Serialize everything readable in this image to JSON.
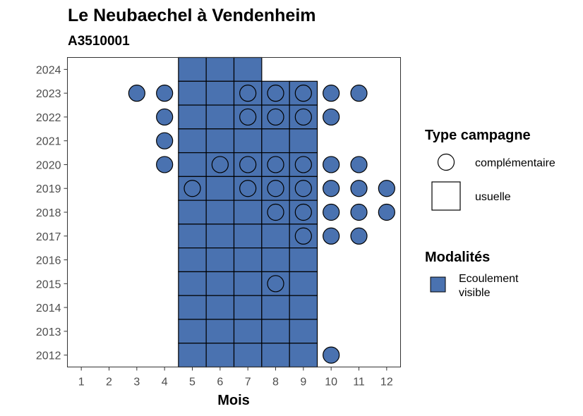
{
  "chart_data": {
    "type": "heatmap",
    "title": "Le Neubaechel à Vendenheim",
    "subtitle": "A3510001",
    "xlabel": "Mois",
    "ylabel": "",
    "x_ticks": [
      "1",
      "2",
      "3",
      "4",
      "5",
      "6",
      "7",
      "8",
      "9",
      "10",
      "11",
      "12"
    ],
    "y_ticks": [
      "2024",
      "2023",
      "2022",
      "2021",
      "2020",
      "2019",
      "2018",
      "2017",
      "2016",
      "2015",
      "2014",
      "2013",
      "2012"
    ],
    "xlim": [
      0.5,
      12.5
    ],
    "ylim": [
      2011.5,
      2024.5
    ],
    "fill_color": "#4a72b0",
    "legend": {
      "shape_title": "Type campagne",
      "shape_items": [
        {
          "shape": "circle",
          "label": "complémentaire"
        },
        {
          "shape": "square",
          "label": "usuelle"
        }
      ],
      "fill_title": "Modalités",
      "fill_items": [
        {
          "label_line1": "Ecoulement",
          "label_line2": "visible",
          "color": "#4a72b0"
        }
      ]
    },
    "usuelle_cells": [
      {
        "year": 2024,
        "months": [
          5,
          6,
          7
        ]
      },
      {
        "year": 2023,
        "months": [
          5,
          6,
          7,
          8,
          9
        ]
      },
      {
        "year": 2022,
        "months": [
          5,
          6,
          7,
          8,
          9
        ]
      },
      {
        "year": 2021,
        "months": [
          5,
          6,
          7,
          8,
          9
        ]
      },
      {
        "year": 2020,
        "months": [
          5,
          6,
          7,
          8,
          9
        ]
      },
      {
        "year": 2019,
        "months": [
          5,
          6,
          7,
          8,
          9
        ]
      },
      {
        "year": 2018,
        "months": [
          5,
          6,
          7,
          8,
          9
        ]
      },
      {
        "year": 2017,
        "months": [
          5,
          6,
          7,
          8,
          9
        ]
      },
      {
        "year": 2016,
        "months": [
          5,
          6,
          7,
          8,
          9
        ]
      },
      {
        "year": 2015,
        "months": [
          5,
          6,
          7,
          8,
          9
        ]
      },
      {
        "year": 2014,
        "months": [
          5,
          6,
          7,
          8,
          9
        ]
      },
      {
        "year": 2013,
        "months": [
          5,
          6,
          7,
          8,
          9
        ]
      },
      {
        "year": 2012,
        "months": [
          5,
          6,
          7,
          8,
          9
        ]
      }
    ],
    "complementaire_points": [
      {
        "year": 2023,
        "months": [
          3,
          4,
          7,
          8,
          9,
          10,
          11
        ]
      },
      {
        "year": 2022,
        "months": [
          4,
          7,
          8,
          9,
          10
        ]
      },
      {
        "year": 2021,
        "months": [
          4
        ]
      },
      {
        "year": 2020,
        "months": [
          4,
          6,
          7,
          8,
          9,
          10,
          11
        ]
      },
      {
        "year": 2019,
        "months": [
          5,
          7,
          8,
          9,
          10,
          11,
          12
        ]
      },
      {
        "year": 2018,
        "months": [
          8,
          9,
          10,
          11,
          12
        ]
      },
      {
        "year": 2017,
        "months": [
          9,
          10,
          11
        ]
      },
      {
        "year": 2015,
        "months": [
          8
        ]
      },
      {
        "year": 2012,
        "months": [
          10
        ]
      }
    ]
  }
}
